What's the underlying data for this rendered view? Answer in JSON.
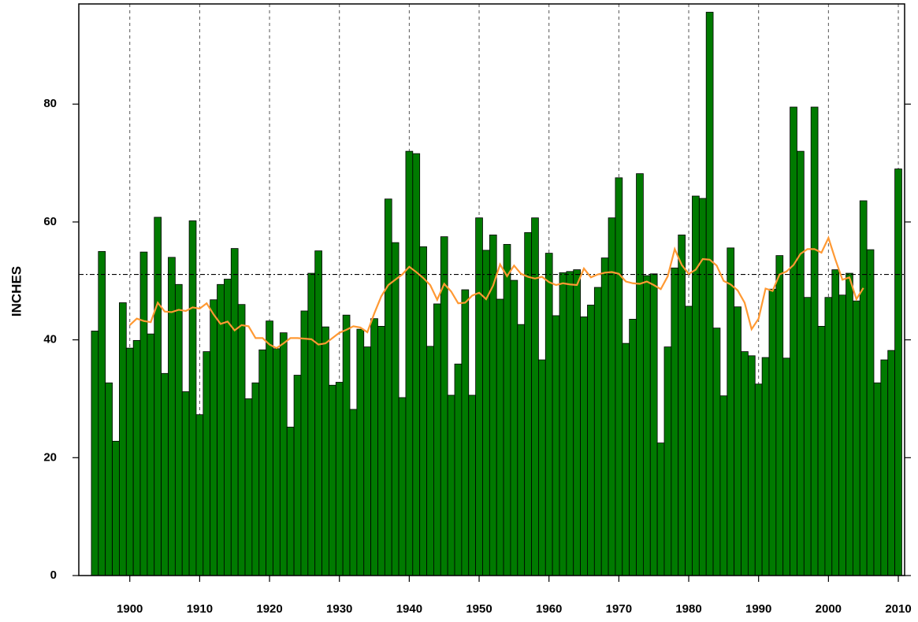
{
  "chart_data": {
    "type": "bar",
    "ylabel": "INCHES",
    "x": [
      1895,
      1896,
      1897,
      1898,
      1899,
      1900,
      1901,
      1902,
      1903,
      1904,
      1905,
      1906,
      1907,
      1908,
      1909,
      1910,
      1911,
      1912,
      1913,
      1914,
      1915,
      1916,
      1917,
      1918,
      1919,
      1920,
      1921,
      1922,
      1923,
      1924,
      1925,
      1926,
      1927,
      1928,
      1929,
      1930,
      1931,
      1932,
      1933,
      1934,
      1935,
      1936,
      1937,
      1938,
      1939,
      1940,
      1941,
      1942,
      1943,
      1944,
      1945,
      1946,
      1947,
      1948,
      1949,
      1950,
      1951,
      1952,
      1953,
      1954,
      1955,
      1956,
      1957,
      1958,
      1959,
      1960,
      1961,
      1962,
      1963,
      1964,
      1965,
      1966,
      1967,
      1968,
      1969,
      1970,
      1971,
      1972,
      1973,
      1974,
      1975,
      1976,
      1977,
      1978,
      1979,
      1980,
      1981,
      1982,
      1983,
      1984,
      1985,
      1986,
      1987,
      1988,
      1989,
      1990,
      1991,
      1992,
      1993,
      1994,
      1995,
      1996,
      1997,
      1998,
      1999,
      2000,
      2001,
      2002,
      2003,
      2004,
      2005,
      2006,
      2007,
      2008,
      2009,
      2010
    ],
    "values": [
      41.5,
      55,
      32.7,
      22.8,
      46.3,
      38.6,
      39.9,
      54.9,
      41,
      60.8,
      34.3,
      54,
      49.4,
      31.2,
      60.2,
      27.3,
      38,
      46.8,
      49.4,
      50.3,
      55.5,
      46,
      30,
      32.7,
      38.3,
      43.2,
      38.5,
      41.2,
      25.2,
      34,
      44.9,
      51.3,
      55.1,
      42.2,
      32.3,
      32.8,
      44.2,
      28.2,
      41.8,
      38.8,
      43.6,
      42.3,
      63.9,
      56.5,
      30.2,
      72,
      71.6,
      55.8,
      38.9,
      46.1,
      57.5,
      30.6,
      35.9,
      48.5,
      30.6,
      60.7,
      55.2,
      57.8,
      46.9,
      56.2,
      50.1,
      42.6,
      58.2,
      60.7,
      36.6,
      54.7,
      44.1,
      51.4,
      51.6,
      51.9,
      43.9,
      45.9,
      48.9,
      53.9,
      60.7,
      67.5,
      39.4,
      43.5,
      68.2,
      50.9,
      51.2,
      22.5,
      38.8,
      52.2,
      57.8,
      45.7,
      64.4,
      64,
      95.6,
      42,
      30.5,
      55.6,
      45.6,
      38,
      37.3,
      32.5,
      37,
      48.6,
      54.3,
      36.9,
      79.5,
      72,
      47.2,
      79.5,
      42.3,
      47.2,
      51.9,
      47.6,
      51.3,
      46.6,
      63.6,
      55.3,
      32.7,
      36.6,
      38.2,
      69
    ],
    "color": "#007a00",
    "line": {
      "color": "#ff9933",
      "values": [
        null,
        null,
        null,
        null,
        null,
        42.5,
        43.6,
        43.2,
        43,
        46.3,
        44.8,
        44.7,
        45.1,
        44.9,
        45.5,
        45.3,
        46.2,
        44.3,
        42.7,
        43.1,
        41.6,
        42.5,
        42.3,
        40.3,
        40.3,
        39.2,
        38.6,
        39.4,
        40.3,
        40.3,
        40.2,
        40.1,
        39.2,
        39.4,
        40.3,
        41.2,
        41.7,
        42.3,
        42.1,
        41.3,
        44.5,
        47.4,
        49.3,
        50.2,
        51.1,
        52.4,
        51.5,
        50.5,
        49.3,
        46.8,
        49.5,
        48.2,
        46.2,
        46.3,
        47.5,
        48,
        46.9,
        49.2,
        52.8,
        50.8,
        52.6,
        51.2,
        50.7,
        50.4,
        50.7,
        49.8,
        49.3,
        49.6,
        49.4,
        49.3,
        52.1,
        50.6,
        51.1,
        51.4,
        51.5,
        51.2,
        49.9,
        49.6,
        49.5,
        49.9,
        49.3,
        48.6,
        50.8,
        55.4,
        52.7,
        51.2,
        51.9,
        53.7,
        53.6,
        52.6,
        50,
        49.4,
        48.4,
        46.3,
        41.8,
        43.6,
        48.7,
        48.3,
        51.1,
        51.6,
        52.7,
        54.6,
        55.4,
        55.4,
        54.8,
        57.3,
        53.6,
        50.2,
        50.6,
        46.9,
        48.8,
        null,
        null,
        null,
        null,
        null
      ]
    },
    "reference_line": 51.1,
    "xlim": [
      1892.7,
      2010.9
    ],
    "ylim": [
      0,
      97
    ],
    "xticks": [
      1900,
      1910,
      1920,
      1930,
      1940,
      1950,
      1960,
      1970,
      1980,
      1990,
      2000,
      2010
    ],
    "yticks": [
      0,
      20,
      40,
      60,
      80
    ],
    "grid": true
  }
}
